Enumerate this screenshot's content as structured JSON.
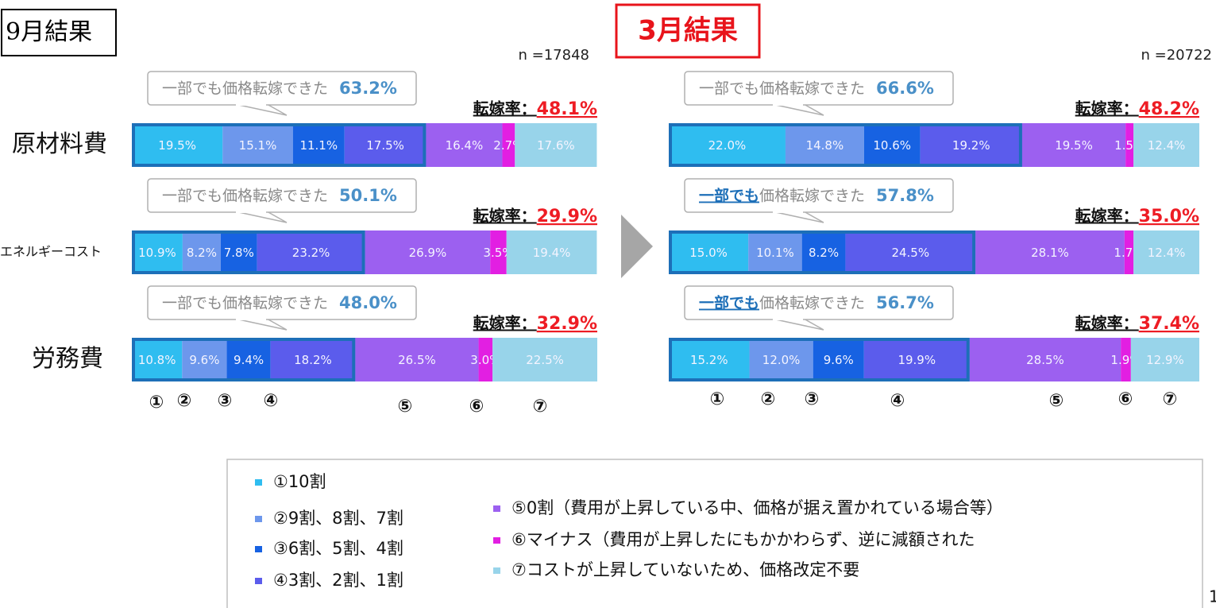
{
  "chart_data": [
    {
      "type": "bar",
      "orientation": "horizontal",
      "stacked": true,
      "title": "9月結果",
      "n_label": "n =17848",
      "categories": [
        "原材料費",
        "エネルギーコスト",
        "労務費"
      ],
      "xlim": [
        0,
        100
      ],
      "series": [
        {
          "name": "①10割",
          "color": "#2fbdf0",
          "values": [
            19.5,
            10.9,
            10.8
          ],
          "value_labels": [
            "19.5%",
            "10.9%",
            "10.8%"
          ]
        },
        {
          "name": "②9割、8割、7割",
          "color": "#6d97ec",
          "values": [
            15.1,
            8.2,
            9.6
          ],
          "value_labels": [
            "15.1%",
            "8.2%",
            "9.6%"
          ]
        },
        {
          "name": "③6割、5割、4割",
          "color": "#1762e2",
          "values": [
            11.1,
            7.8,
            9.4
          ],
          "value_labels": [
            "11.1%",
            "7.8%",
            "9.4%"
          ]
        },
        {
          "name": "④3割、2割、1割",
          "color": "#5b5cec",
          "values": [
            17.5,
            23.2,
            18.2
          ],
          "value_labels": [
            "17.5%",
            "23.2%",
            "18.2%"
          ]
        },
        {
          "name": "⑤0割（費用が上昇している中、価格が据え置かれている場合等）",
          "color": "#9c60f0",
          "values": [
            16.4,
            26.9,
            26.5
          ],
          "value_labels": [
            "16.4%",
            "26.9%",
            "26.5%"
          ]
        },
        {
          "name": "⑥マイナス（費用が上昇したにもかかわらず、逆に減額された",
          "color": "#e21fe2",
          "values": [
            2.7,
            3.5,
            3.0
          ],
          "value_labels": [
            "2.7%",
            "3.5%",
            "3.0%"
          ]
        },
        {
          "name": "⑦コストが上昇していないため、価格改定不要",
          "color": "#98d4ea",
          "values": [
            17.6,
            19.4,
            22.5
          ],
          "value_labels": [
            "17.6%",
            "19.4%",
            "22.5%"
          ]
        }
      ],
      "callout_head": "一部でも",
      "callout_tail": "価格転嫁できた",
      "callout_underline": [
        false,
        false,
        false
      ],
      "shares": [
        63.2,
        50.1,
        48.0
      ],
      "share_labels": [
        "63.2%",
        "50.1%",
        "48.0%"
      ],
      "rate_label": "転嫁率：",
      "rates": [
        48.1,
        29.9,
        32.9
      ],
      "rate_labels": [
        "48.1%",
        "29.9%",
        "32.9%"
      ],
      "column_labels": [
        "①",
        "②",
        "③",
        "④",
        "⑤",
        "⑥",
        "⑦"
      ]
    },
    {
      "type": "bar",
      "orientation": "horizontal",
      "stacked": true,
      "title": "3月結果",
      "n_label": "n =20722",
      "xlim": [
        0,
        100
      ],
      "series": [
        {
          "values": [
            22.0,
            15.0,
            15.2
          ],
          "value_labels": [
            "22.0%",
            "15.0%",
            "15.2%"
          ]
        },
        {
          "values": [
            14.8,
            10.1,
            12.0
          ],
          "value_labels": [
            "14.8%",
            "10.1%",
            "12.0%"
          ]
        },
        {
          "values": [
            10.6,
            8.2,
            9.6
          ],
          "value_labels": [
            "10.6%",
            "8.2%",
            "9.6%"
          ]
        },
        {
          "values": [
            19.2,
            24.5,
            19.9
          ],
          "value_labels": [
            "19.2%",
            "24.5%",
            "19.9%"
          ]
        },
        {
          "values": [
            19.5,
            28.1,
            28.5
          ],
          "value_labels": [
            "19.5%",
            "28.1%",
            "28.5%"
          ]
        },
        {
          "values": [
            1.5,
            1.7,
            1.9
          ],
          "value_labels": [
            "1.5%",
            "1.7%",
            "1.9%"
          ]
        },
        {
          "values": [
            12.4,
            12.4,
            12.9
          ],
          "value_labels": [
            "12.4%",
            "12.4%",
            "12.9%"
          ]
        }
      ],
      "callout_head": "一部でも",
      "callout_tail": "価格転嫁できた",
      "callout_underline": [
        false,
        true,
        true
      ],
      "shares": [
        66.6,
        57.8,
        56.7
      ],
      "share_labels": [
        "66.6%",
        "57.8%",
        "56.7%"
      ],
      "rate_label": "転嫁率：",
      "rates": [
        48.2,
        35.0,
        37.4
      ],
      "rate_labels": [
        "48.2%",
        "35.0%",
        "37.4%"
      ],
      "column_labels": [
        "①",
        "②",
        "③",
        "④",
        "⑤",
        "⑥",
        "⑦"
      ]
    }
  ],
  "page_number": "1"
}
